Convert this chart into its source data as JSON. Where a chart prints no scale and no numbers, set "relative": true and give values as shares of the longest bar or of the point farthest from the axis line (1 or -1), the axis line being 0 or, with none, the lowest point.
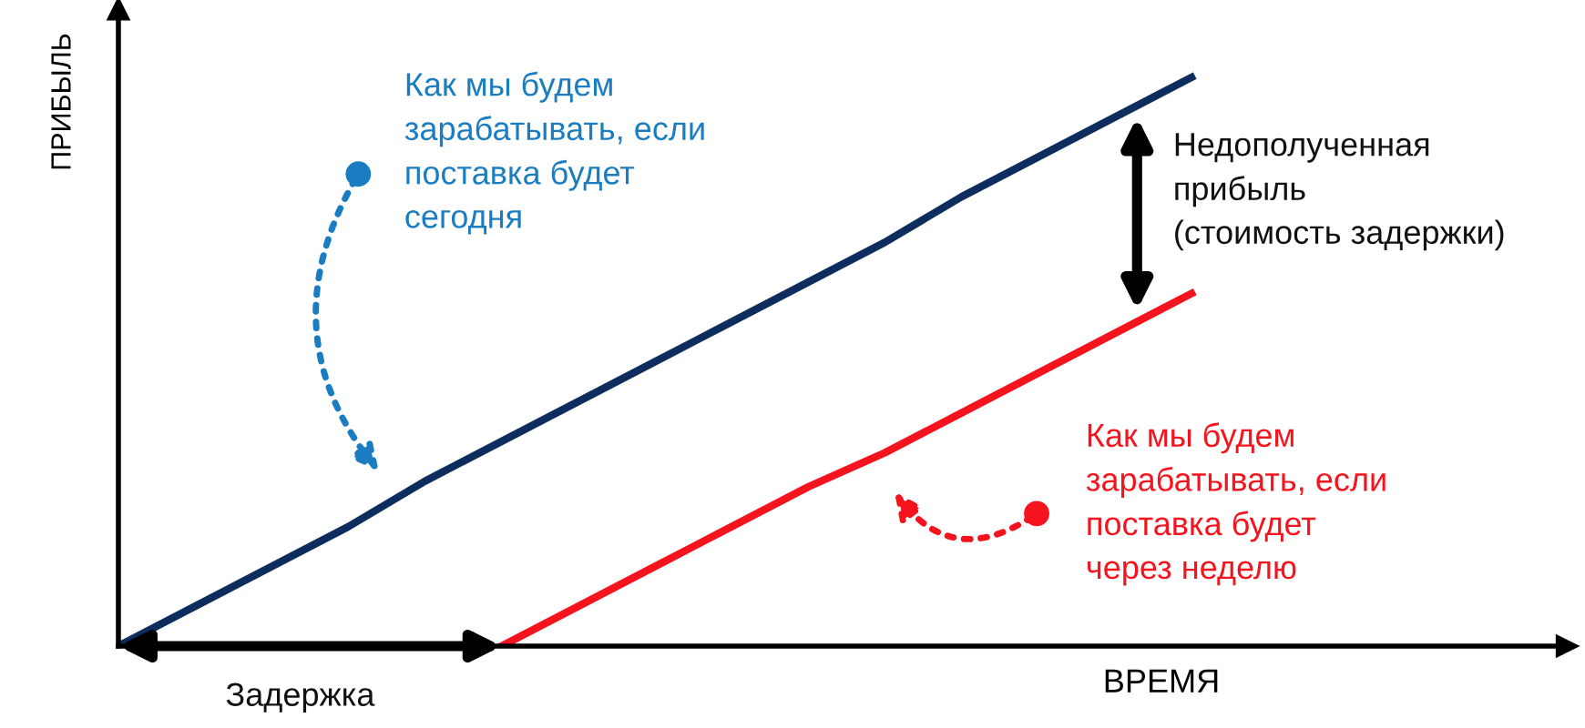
{
  "chart_data": {
    "type": "line",
    "relative": true,
    "xlabel": "ВРЕМЯ",
    "ylabel": "ПРИБЫЛЬ",
    "categories": [
      null,
      null,
      null,
      null,
      null,
      null,
      null,
      null,
      null,
      null,
      null,
      null,
      null,
      null,
      null
    ],
    "series": [
      {
        "color": "#0d2d5e",
        "values": [
          0,
          0.07,
          0.14,
          0.21,
          0.29,
          0.36,
          0.43,
          0.5,
          0.57,
          0.64,
          0.71,
          0.79,
          0.86,
          0.93,
          1.0
        ]
      },
      {
        "color": "#f5141e",
        "values": [
          null,
          null,
          null,
          null,
          null,
          0,
          0.07,
          0.14,
          0.21,
          0.28,
          0.34,
          0.41,
          0.48,
          0.55,
          0.62
        ]
      }
    ],
    "annotations": [
      "Как мы будем\nзарабатывать, если\nпоставка будет\nсегодня",
      "Как мы будем\nзарабатывать, если\nпоставка будет\nчерез неделю",
      "Недополученная\nприбыль\n(стоимость задержки)",
      "Задержка"
    ],
    "grid": false,
    "legend": false,
    "marker": "none",
    "line_style": "solid"
  }
}
